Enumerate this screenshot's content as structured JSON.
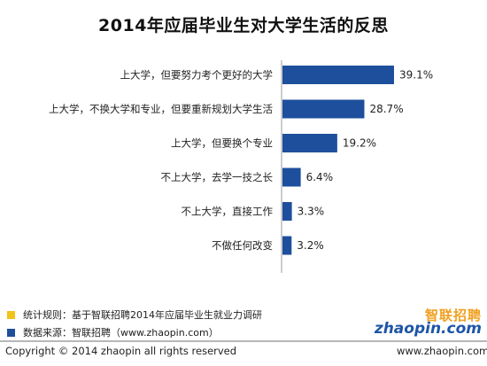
{
  "colors": {
    "bar": "#1e4f9c",
    "axis": "#9a9a9a",
    "legend_rule": "#f2c31a",
    "legend_source": "#1e4f9c"
  },
  "chart_data": {
    "type": "bar",
    "orientation": "horizontal",
    "title": "2014年应届毕业生对大学生活的反思",
    "categories": [
      "上大学，但要努力考个更好的大学",
      "上大学，不换大学和专业，但要重新规划大学生活",
      "上大学，但要换个专业",
      "不上大学，去学一技之长",
      "不上大学，直接工作",
      "不做任何改变"
    ],
    "values": [
      39.1,
      28.7,
      19.2,
      6.4,
      3.3,
      3.2
    ],
    "value_labels": [
      "39.1%",
      "28.7%",
      "19.2%",
      "6.4%",
      "3.3%",
      "3.2%"
    ],
    "xlim": [
      0,
      45
    ],
    "grid": false
  },
  "legend": [
    {
      "key": "rule",
      "text": "统计规则：基于智联招聘2014年应届毕业生就业力调研"
    },
    {
      "key": "source",
      "text": "数据来源：智联招聘（www.zhaopin.com）"
    }
  ],
  "logo": {
    "cn": "智联招聘",
    "en": "zhaopin.com"
  },
  "footer": {
    "copyright": "Copyright  ©  2014 zhaopin all rights reserved",
    "website": "www.zhaopin.com"
  }
}
